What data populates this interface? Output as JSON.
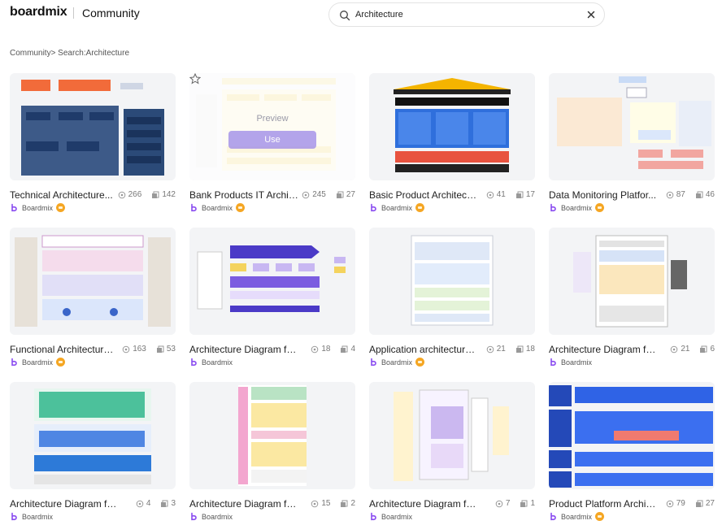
{
  "header": {
    "logo_text": "boardmix",
    "section_title": "Community"
  },
  "search": {
    "value": "Architecture",
    "icon": "search-icon",
    "clear_icon": "close-icon"
  },
  "breadcrumb": {
    "text": "Community> Search:Architecture"
  },
  "hover": {
    "preview_label": "Preview",
    "use_label": "Use"
  },
  "cards": [
    {
      "title": "Technical Architecture...",
      "views": "266",
      "copies": "142",
      "author": "Boardmix",
      "badge": true
    },
    {
      "title": "Bank Products IT Archit...",
      "views": "245",
      "copies": "27",
      "author": "Boardmix",
      "badge": true
    },
    {
      "title": "Basic Product Architectur...",
      "views": "41",
      "copies": "17",
      "author": "Boardmix",
      "badge": true
    },
    {
      "title": "Data Monitoring Platfor...",
      "views": "87",
      "copies": "46",
      "author": "Boardmix",
      "badge": true
    },
    {
      "title": "Functional Architecture ...",
      "views": "163",
      "copies": "53",
      "author": "Boardmix",
      "badge": true
    },
    {
      "title": "Architecture Diagram for ...",
      "views": "18",
      "copies": "4",
      "author": "Boardmix",
      "badge": false
    },
    {
      "title": "Application architecture ...",
      "views": "21",
      "copies": "18",
      "author": "Boardmix",
      "badge": true
    },
    {
      "title": "Architecture Diagram for ...",
      "views": "21",
      "copies": "6",
      "author": "Boardmix",
      "badge": false
    },
    {
      "title": "Architecture Diagram for P...",
      "views": "4",
      "copies": "3",
      "author": "Boardmix",
      "badge": false
    },
    {
      "title": "Architecture Diagram for I...",
      "views": "15",
      "copies": "2",
      "author": "Boardmix",
      "badge": false
    },
    {
      "title": "Architecture Diagram for A...",
      "views": "7",
      "copies": "1",
      "author": "Boardmix",
      "badge": false
    },
    {
      "title": "Product Platform Archite...",
      "views": "79",
      "copies": "27",
      "author": "Boardmix",
      "badge": true
    }
  ],
  "colors": {
    "accent": "#9b87e8",
    "badge": "#f5a623",
    "text_muted": "#777777"
  }
}
